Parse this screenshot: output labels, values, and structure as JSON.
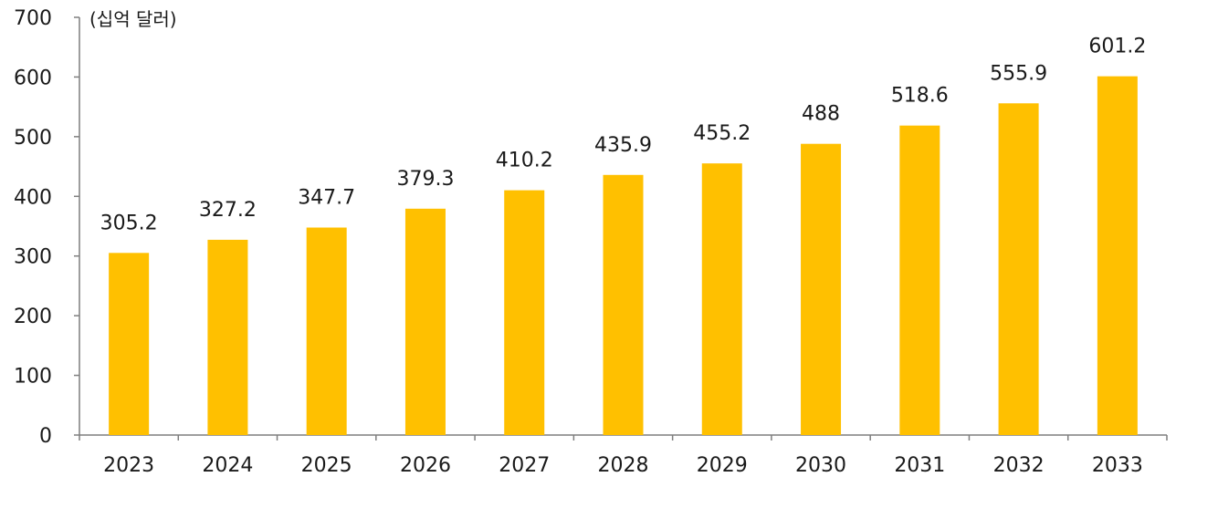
{
  "chart_data": {
    "type": "bar",
    "unit_label": "(십억 달러)",
    "categories": [
      "2023",
      "2024",
      "2025",
      "2026",
      "2027",
      "2028",
      "2029",
      "2030",
      "2031",
      "2032",
      "2033"
    ],
    "values": [
      305.2,
      327.2,
      347.7,
      379.3,
      410.2,
      435.9,
      455.2,
      488,
      518.6,
      555.9,
      601.2
    ],
    "value_labels": [
      "305.2",
      "327.2",
      "347.7",
      "379.3",
      "410.2",
      "435.9",
      "455.2",
      "488",
      "518.6",
      "555.9",
      "601.2"
    ],
    "ylim": [
      0,
      700
    ],
    "yticks": [
      0,
      100,
      200,
      300,
      400,
      500,
      600,
      700
    ],
    "grid": false,
    "bar_color": "#FFC000",
    "axis_color": "#7f7f7f"
  }
}
